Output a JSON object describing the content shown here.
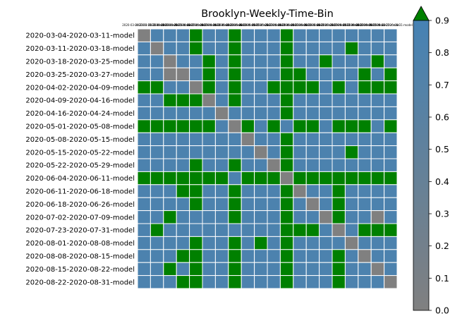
{
  "chart_data": {
    "type": "heatmap",
    "title": "Brooklyn-Weekly-Time-Bin",
    "xlabel": "",
    "ylabel": "",
    "rows": [
      "2020-03-04-2020-03-11-model",
      "2020-03-11-2020-03-18-model",
      "2020-03-18-2020-03-25-model",
      "2020-03-25-2020-03-27-model",
      "2020-04-02-2020-04-09-model",
      "2020-04-09-2020-04-16-model",
      "2020-04-16-2020-04-24-model",
      "2020-05-01-2020-05-08-model",
      "2020-05-08-2020-05-15-model",
      "2020-05-15-2020-05-22-model",
      "2020-05-22-2020-05-29-model",
      "2020-06-04-2020-06-11-model",
      "2020-06-11-2020-06-18-model",
      "2020-06-18-2020-06-26-model",
      "2020-07-02-2020-07-09-model",
      "2020-07-23-2020-07-31-model",
      "2020-08-01-2020-08-08-model",
      "2020-08-08-2020-08-15-model",
      "2020-08-15-2020-08-22-model",
      "2020-08-22-2020-08-31-model"
    ],
    "columns": [
      "2020-03-04-2020-03-11-model",
      "2020-03-11-2020-03-18-model",
      "2020-03-18-2020-03-25-model",
      "2020-03-25-2020-03-27-model",
      "2020-04-02-2020-04-09-model",
      "2020-04-09-2020-04-16-model",
      "2020-04-16-2020-04-24-model",
      "2020-05-01-2020-05-08-model",
      "2020-05-08-2020-05-15-model",
      "2020-05-15-2020-05-22-model",
      "2020-05-22-2020-05-29-model",
      "2020-06-04-2020-06-11-model",
      "2020-06-11-2020-06-18-model",
      "2020-06-18-2020-06-26-model",
      "2020-07-02-2020-07-09-model",
      "2020-07-23-2020-07-31-model",
      "2020-08-01-2020-08-08-model",
      "2020-08-08-2020-08-15-model",
      "2020-08-15-2020-08-22-model",
      "2020-08-22-2020-08-31-model"
    ],
    "values": [
      [
        0.0,
        0.8,
        0.8,
        0.8,
        1.0,
        0.8,
        0.8,
        1.0,
        0.8,
        0.8,
        0.8,
        1.0,
        0.8,
        0.8,
        0.8,
        0.8,
        0.8,
        0.8,
        0.8,
        0.8
      ],
      [
        0.8,
        0.0,
        0.8,
        0.8,
        1.0,
        0.8,
        0.8,
        1.0,
        0.8,
        0.8,
        0.8,
        1.0,
        0.8,
        0.8,
        0.8,
        0.8,
        1.0,
        0.8,
        0.8,
        0.8
      ],
      [
        0.8,
        0.8,
        0.0,
        0.8,
        0.8,
        1.0,
        0.8,
        1.0,
        0.8,
        0.8,
        0.8,
        1.0,
        0.8,
        0.8,
        1.0,
        0.8,
        0.8,
        0.8,
        1.0,
        0.8
      ],
      [
        0.8,
        0.8,
        0.0,
        0.0,
        0.8,
        1.0,
        0.8,
        1.0,
        0.8,
        0.8,
        0.8,
        1.0,
        1.0,
        0.8,
        0.8,
        0.8,
        0.8,
        1.0,
        0.8,
        1.0
      ],
      [
        1.0,
        1.0,
        0.8,
        0.8,
        0.0,
        1.0,
        0.8,
        1.0,
        0.8,
        0.8,
        1.0,
        1.0,
        1.0,
        1.0,
        0.8,
        1.0,
        0.8,
        1.0,
        1.0,
        1.0
      ],
      [
        0.8,
        0.8,
        1.0,
        1.0,
        1.0,
        0.0,
        0.8,
        1.0,
        0.8,
        0.8,
        0.8,
        1.0,
        0.8,
        0.8,
        0.8,
        0.8,
        0.8,
        0.8,
        0.8,
        0.8
      ],
      [
        0.8,
        0.8,
        0.8,
        0.8,
        0.8,
        0.8,
        0.0,
        0.8,
        0.8,
        0.8,
        0.8,
        1.0,
        0.8,
        0.8,
        0.8,
        0.8,
        0.8,
        0.8,
        0.8,
        0.8
      ],
      [
        1.0,
        1.0,
        1.0,
        1.0,
        1.0,
        1.0,
        0.8,
        0.0,
        1.0,
        0.8,
        1.0,
        0.8,
        1.0,
        1.0,
        0.8,
        1.0,
        1.0,
        1.0,
        0.8,
        1.0
      ],
      [
        0.8,
        0.8,
        0.8,
        0.8,
        0.8,
        0.8,
        0.8,
        0.8,
        0.0,
        0.8,
        0.8,
        1.0,
        0.8,
        0.8,
        0.8,
        0.8,
        0.8,
        0.8,
        0.8,
        0.8
      ],
      [
        0.8,
        0.8,
        0.8,
        0.8,
        0.8,
        0.8,
        0.8,
        0.8,
        0.8,
        0.0,
        0.8,
        1.0,
        0.8,
        0.8,
        0.8,
        0.8,
        1.0,
        0.8,
        0.8,
        0.8
      ],
      [
        0.8,
        0.8,
        0.8,
        0.8,
        1.0,
        0.8,
        0.8,
        1.0,
        0.8,
        0.8,
        0.0,
        1.0,
        0.8,
        0.8,
        0.8,
        0.8,
        0.8,
        0.8,
        0.8,
        0.8
      ],
      [
        1.0,
        1.0,
        1.0,
        1.0,
        1.0,
        1.0,
        1.0,
        0.8,
        1.0,
        1.0,
        1.0,
        0.0,
        1.0,
        1.0,
        1.0,
        1.0,
        1.0,
        1.0,
        1.0,
        1.0
      ],
      [
        0.8,
        0.8,
        0.8,
        1.0,
        1.0,
        0.8,
        0.8,
        1.0,
        0.8,
        0.8,
        0.8,
        1.0,
        0.0,
        0.8,
        0.8,
        1.0,
        0.8,
        0.8,
        0.8,
        0.8
      ],
      [
        0.8,
        0.8,
        0.8,
        0.8,
        1.0,
        0.8,
        0.8,
        1.0,
        0.8,
        0.8,
        0.8,
        1.0,
        0.8,
        0.0,
        0.8,
        1.0,
        0.8,
        0.8,
        0.8,
        0.8
      ],
      [
        0.8,
        0.8,
        1.0,
        0.8,
        0.8,
        0.8,
        0.8,
        1.0,
        0.8,
        0.8,
        0.8,
        1.0,
        0.8,
        0.8,
        0.0,
        1.0,
        0.8,
        0.8,
        0.0,
        0.8
      ],
      [
        0.8,
        1.0,
        0.8,
        0.8,
        0.8,
        0.8,
        0.8,
        0.8,
        0.8,
        0.8,
        0.8,
        1.0,
        1.0,
        1.0,
        0.8,
        0.0,
        0.8,
        1.0,
        1.0,
        1.0
      ],
      [
        0.8,
        0.8,
        0.8,
        0.8,
        1.0,
        0.8,
        0.8,
        1.0,
        0.8,
        1.0,
        0.8,
        1.0,
        0.8,
        0.8,
        0.8,
        0.8,
        0.0,
        0.8,
        0.8,
        0.8
      ],
      [
        0.8,
        0.8,
        0.8,
        1.0,
        1.0,
        0.8,
        0.8,
        1.0,
        0.8,
        0.8,
        0.8,
        1.0,
        0.8,
        0.8,
        0.8,
        1.0,
        0.8,
        0.0,
        0.8,
        0.8
      ],
      [
        0.8,
        0.8,
        1.0,
        0.8,
        1.0,
        0.8,
        0.8,
        1.0,
        0.8,
        0.8,
        0.8,
        1.0,
        0.8,
        0.8,
        0.8,
        1.0,
        0.8,
        0.8,
        0.0,
        0.8
      ],
      [
        0.8,
        0.8,
        0.8,
        1.0,
        1.0,
        0.8,
        0.8,
        1.0,
        0.8,
        0.8,
        0.8,
        1.0,
        0.8,
        0.8,
        0.8,
        1.0,
        0.8,
        0.8,
        0.8,
        0.0
      ]
    ],
    "colorbar": {
      "min": 0.0,
      "max": 0.9,
      "ticks": [
        "0.0",
        "0.1",
        "0.2",
        "0.3",
        "0.4",
        "0.5",
        "0.6",
        "0.7",
        "0.8",
        "0.9"
      ],
      "extend": "max",
      "low_color": "#808080",
      "high_color": "#4682b4",
      "over_color": "#008000"
    },
    "grid_line_color": "#ffffff"
  }
}
